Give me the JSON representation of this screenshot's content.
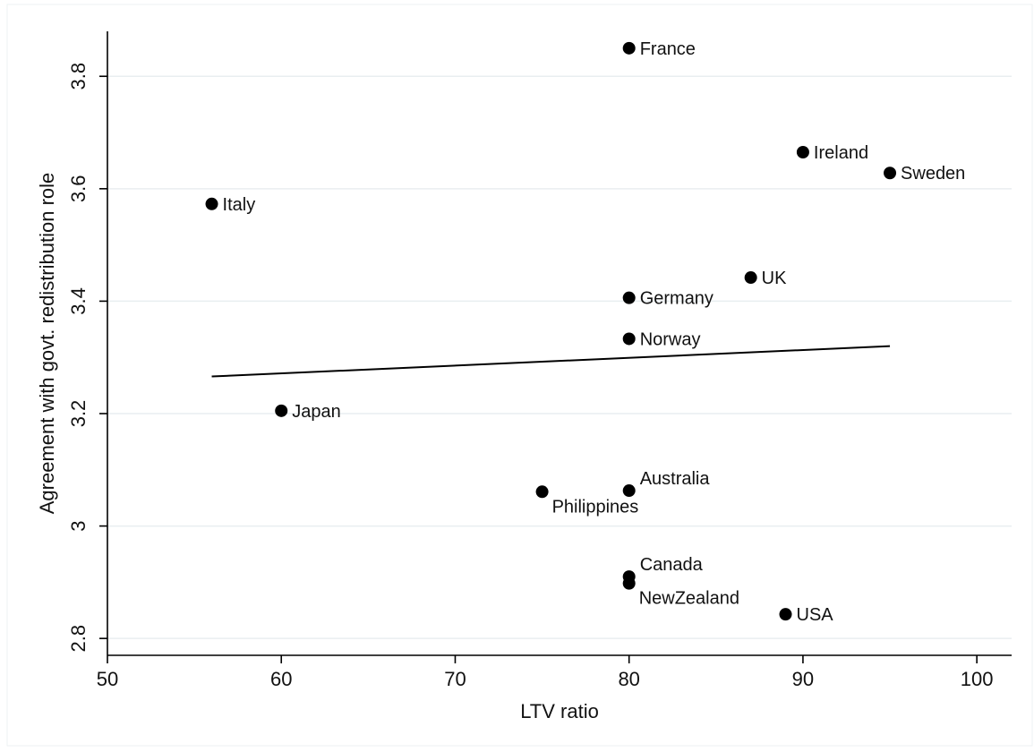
{
  "chart_data": {
    "type": "scatter",
    "xlabel": "LTV ratio",
    "ylabel": "Agreement with govt. redistribution role",
    "xlim": [
      50,
      102
    ],
    "ylim": [
      2.77,
      3.88
    ],
    "xticks": [
      50,
      60,
      70,
      80,
      90,
      100
    ],
    "yticks": [
      2.8,
      3,
      3.2,
      3.4,
      3.6,
      3.8
    ],
    "ytick_labels": [
      "2.8",
      "3",
      "3.2",
      "3.4",
      "3.6",
      "3.8"
    ],
    "grid": true,
    "points": [
      {
        "label": "France",
        "x": 80,
        "y": 3.85
      },
      {
        "label": "Ireland",
        "x": 90,
        "y": 3.665
      },
      {
        "label": "Sweden",
        "x": 95,
        "y": 3.628
      },
      {
        "label": "Italy",
        "x": 56,
        "y": 3.573
      },
      {
        "label": "UK",
        "x": 87,
        "y": 3.442
      },
      {
        "label": "Germany",
        "x": 80,
        "y": 3.406
      },
      {
        "label": "Norway",
        "x": 80,
        "y": 3.333
      },
      {
        "label": "Japan",
        "x": 60,
        "y": 3.205
      },
      {
        "label": "Australia",
        "x": 80,
        "y": 3.063
      },
      {
        "label": "Philippines",
        "x": 75,
        "y": 3.061
      },
      {
        "label": "Canada",
        "x": 80,
        "y": 2.91
      },
      {
        "label": "NewZealand",
        "x": 80,
        "y": 2.898
      },
      {
        "label": "USA",
        "x": 89,
        "y": 2.843
      }
    ],
    "fit_line": {
      "x": [
        56,
        95
      ],
      "y": [
        3.266,
        3.32
      ]
    }
  }
}
